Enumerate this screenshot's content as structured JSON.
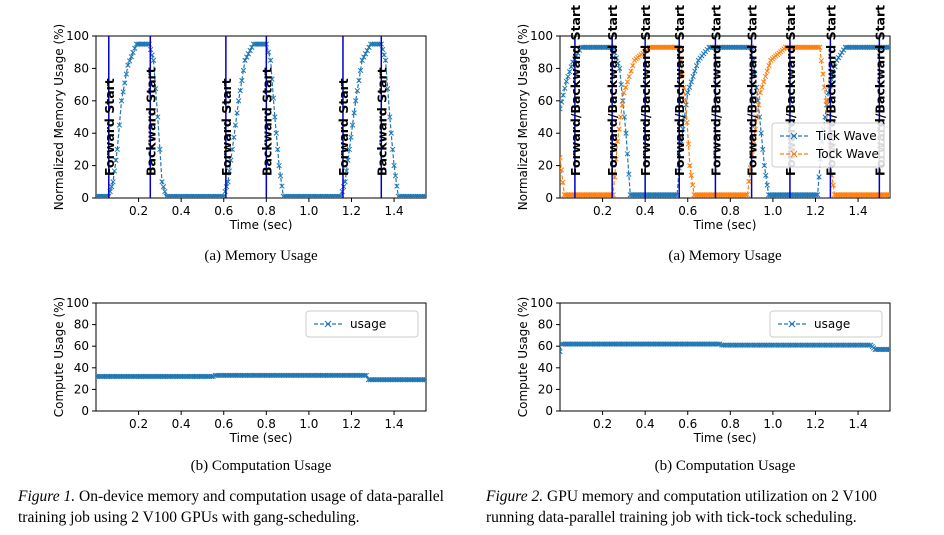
{
  "chart_data": [
    {
      "id": "fig1a",
      "type": "line",
      "xlabel": "Time (sec)",
      "ylabel": "Normalized Memory Usage (%)",
      "xlim": [
        0.0,
        1.55
      ],
      "ylim": [
        0,
        100
      ],
      "xticks": [
        0.2,
        0.4,
        0.6,
        0.8,
        1.0,
        1.2,
        1.4
      ],
      "yticks": [
        0,
        20,
        40,
        60,
        80,
        100
      ],
      "grid": false,
      "legend": null,
      "series": [
        {
          "color": "#1f77b4",
          "marker": "x",
          "points": [
            [
              0.0,
              1
            ],
            [
              0.06,
              1
            ],
            [
              0.08,
              10
            ],
            [
              0.1,
              30
            ],
            [
              0.12,
              60
            ],
            [
              0.15,
              82
            ],
            [
              0.19,
              95
            ],
            [
              0.25,
              95
            ],
            [
              0.27,
              85
            ],
            [
              0.29,
              50
            ],
            [
              0.3,
              30
            ],
            [
              0.31,
              10
            ],
            [
              0.33,
              1
            ],
            [
              0.6,
              1
            ],
            [
              0.62,
              10
            ],
            [
              0.64,
              30
            ],
            [
              0.67,
              60
            ],
            [
              0.7,
              85
            ],
            [
              0.74,
              95
            ],
            [
              0.8,
              95
            ],
            [
              0.82,
              85
            ],
            [
              0.84,
              50
            ],
            [
              0.86,
              20
            ],
            [
              0.88,
              1
            ],
            [
              1.15,
              1
            ],
            [
              1.17,
              10
            ],
            [
              1.19,
              30
            ],
            [
              1.22,
              60
            ],
            [
              1.25,
              85
            ],
            [
              1.29,
              95
            ],
            [
              1.34,
              95
            ],
            [
              1.36,
              85
            ],
            [
              1.38,
              50
            ],
            [
              1.4,
              20
            ],
            [
              1.42,
              1
            ],
            [
              1.55,
              1
            ]
          ]
        }
      ],
      "vlines": [
        {
          "x": 0.06,
          "label": "Forward Start"
        },
        {
          "x": 0.255,
          "label": "Backward Start"
        },
        {
          "x": 0.61,
          "label": "Forward Start"
        },
        {
          "x": 0.8,
          "label": "Backward Start"
        },
        {
          "x": 1.16,
          "label": "Forward Start"
        },
        {
          "x": 1.34,
          "label": "Backward Start"
        }
      ]
    },
    {
      "id": "fig1b",
      "type": "line",
      "xlabel": "Time (sec)",
      "ylabel": "Compute Usage (%)",
      "xlim": [
        0.0,
        1.55
      ],
      "ylim": [
        0,
        100
      ],
      "xticks": [
        0.2,
        0.4,
        0.6,
        0.8,
        1.0,
        1.2,
        1.4
      ],
      "yticks": [
        0,
        20,
        40,
        60,
        80,
        100
      ],
      "grid": false,
      "legend": "top-right",
      "series": [
        {
          "name": "usage",
          "color": "#1f77b4",
          "marker": "x",
          "points": [
            [
              0.0,
              32
            ],
            [
              0.55,
              32
            ],
            [
              0.56,
              33
            ],
            [
              1.27,
              33
            ],
            [
              1.28,
              29
            ],
            [
              1.55,
              29
            ]
          ]
        }
      ]
    },
    {
      "id": "fig2a",
      "type": "line",
      "xlabel": "Time (sec)",
      "ylabel": "Normalized Memory Usage (%)",
      "xlim": [
        0.0,
        1.55
      ],
      "ylim": [
        0,
        100
      ],
      "xticks": [
        0.2,
        0.4,
        0.6,
        0.8,
        1.0,
        1.2,
        1.4
      ],
      "yticks": [
        0,
        20,
        40,
        60,
        80,
        100
      ],
      "grid": false,
      "legend": "center-right",
      "series": [
        {
          "name": "Tick Wave",
          "color": "#1f77b4",
          "marker": "x",
          "points": [
            [
              0.0,
              55
            ],
            [
              0.03,
              72
            ],
            [
              0.06,
              84
            ],
            [
              0.1,
              93
            ],
            [
              0.25,
              93
            ],
            [
              0.28,
              80
            ],
            [
              0.31,
              40
            ],
            [
              0.33,
              2
            ],
            [
              0.55,
              2
            ],
            [
              0.57,
              35
            ],
            [
              0.6,
              65
            ],
            [
              0.65,
              85
            ],
            [
              0.7,
              93
            ],
            [
              0.9,
              93
            ],
            [
              0.93,
              60
            ],
            [
              0.96,
              20
            ],
            [
              0.98,
              2
            ],
            [
              1.21,
              2
            ],
            [
              1.23,
              35
            ],
            [
              1.26,
              65
            ],
            [
              1.3,
              85
            ],
            [
              1.34,
              93
            ],
            [
              1.55,
              93
            ]
          ]
        },
        {
          "name": "Tock Wave",
          "color": "#ff7f0e",
          "marker": "x",
          "points": [
            [
              0.0,
              25
            ],
            [
              0.02,
              2
            ],
            [
              0.25,
              2
            ],
            [
              0.27,
              35
            ],
            [
              0.3,
              65
            ],
            [
              0.35,
              85
            ],
            [
              0.42,
              93
            ],
            [
              0.56,
              93
            ],
            [
              0.59,
              60
            ],
            [
              0.61,
              20
            ],
            [
              0.63,
              2
            ],
            [
              0.88,
              2
            ],
            [
              0.91,
              35
            ],
            [
              0.94,
              65
            ],
            [
              0.99,
              85
            ],
            [
              1.06,
              93
            ],
            [
              1.22,
              93
            ],
            [
              1.25,
              60
            ],
            [
              1.27,
              20
            ],
            [
              1.29,
              2
            ],
            [
              1.55,
              2
            ]
          ]
        }
      ],
      "vlines": [
        {
          "x": 0.07,
          "label": "Forward/Backward Start"
        },
        {
          "x": 0.245,
          "label": "Forward/Backward Start"
        },
        {
          "x": 0.4,
          "label": "Forward/Backward Start"
        },
        {
          "x": 0.56,
          "label": "Forward/Backward Start"
        },
        {
          "x": 0.73,
          "label": "Forward/Backward Start"
        },
        {
          "x": 0.9,
          "label": "Forward/Backward Start"
        },
        {
          "x": 1.08,
          "label": "Forward/Backward Start"
        },
        {
          "x": 1.27,
          "label": "Forward/Backward Start"
        },
        {
          "x": 1.5,
          "label": "Forward/Backward Start"
        }
      ]
    },
    {
      "id": "fig2b",
      "type": "line",
      "xlabel": "Time (sec)",
      "ylabel": "Compute Usage (%)",
      "xlim": [
        0.0,
        1.55
      ],
      "ylim": [
        0,
        100
      ],
      "xticks": [
        0.2,
        0.4,
        0.6,
        0.8,
        1.0,
        1.2,
        1.4
      ],
      "yticks": [
        0,
        20,
        40,
        60,
        80,
        100
      ],
      "grid": false,
      "legend": "top-right",
      "series": [
        {
          "name": "usage",
          "color": "#1f77b4",
          "marker": "x",
          "points": [
            [
              0.0,
              55
            ],
            [
              0.01,
              62
            ],
            [
              0.75,
              62
            ],
            [
              0.76,
              61
            ],
            [
              1.46,
              61
            ],
            [
              1.48,
              57
            ],
            [
              1.55,
              57
            ]
          ]
        }
      ]
    }
  ],
  "captions": {
    "fig1a_sub": "(a) Memory Usage",
    "fig1b_sub": "(b) Computation Usage",
    "fig2a_sub": "(a) Memory Usage",
    "fig2b_sub": "(b) Computation Usage",
    "fig1_label": "Figure 1.",
    "fig1_text": " On-device memory and computation usage of data-parallel training job using 2 V100 GPUs with gang-scheduling.",
    "fig2_label": "Figure 2.",
    "fig2_text": " GPU memory and computation utilization on 2 V100 running data-parallel training job with tick-tock scheduling."
  }
}
